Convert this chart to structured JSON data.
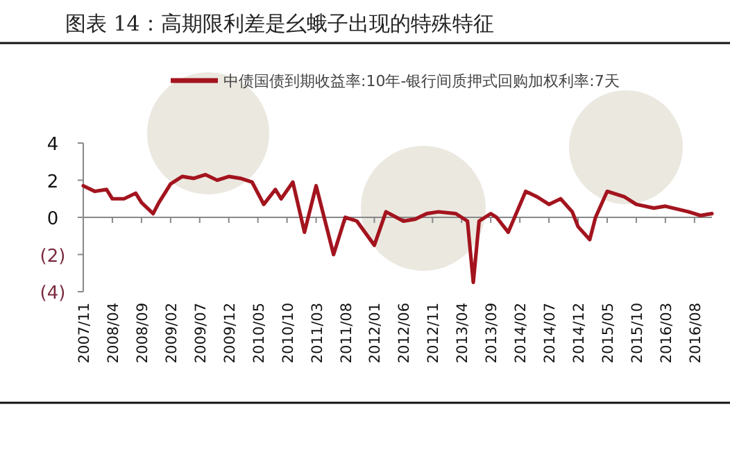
{
  "chart_data": {
    "type": "line",
    "title": "图表 14：高期限利差是幺蛾子出现的特殊特征",
    "x": [
      "2007-11",
      "2007-12",
      "2008-01",
      "2008-03",
      "2008-04",
      "2008-06",
      "2008-08",
      "2008-09",
      "2008-11",
      "2008-12",
      "2009-02",
      "2009-04",
      "2009-06",
      "2009-08",
      "2009-10",
      "2009-12",
      "2010-02",
      "2010-04",
      "2010-06",
      "2010-08",
      "2010-09",
      "2010-11",
      "2011-01",
      "2011-03",
      "2011-06",
      "2011-08",
      "2011-10",
      "2012-01",
      "2012-03",
      "2012-06",
      "2012-08",
      "2012-10",
      "2012-12",
      "2013-03",
      "2013-05",
      "2013-06",
      "2013-07",
      "2013-09",
      "2013-10",
      "2013-12",
      "2014-03",
      "2014-05",
      "2014-07",
      "2014-09",
      "2014-11",
      "2014-12",
      "2015-02",
      "2015-03",
      "2015-05",
      "2015-08",
      "2015-10",
      "2016-01",
      "2016-03",
      "2016-07",
      "2016-09",
      "2016-11"
    ],
    "series": [
      {
        "name": "中债国债到期收益率:10年-银行间质押式回购加权利率:7天",
        "color": "#a3141e",
        "values": [
          1.7,
          1.55,
          1.4,
          1.5,
          1.0,
          1.0,
          1.3,
          0.8,
          0.2,
          0.8,
          1.8,
          2.2,
          2.1,
          2.3,
          2.0,
          2.2,
          2.1,
          1.9,
          0.7,
          1.5,
          1.0,
          1.9,
          -0.8,
          1.7,
          -2.0,
          0.0,
          -0.2,
          -1.5,
          0.3,
          -0.2,
          -0.1,
          0.2,
          0.3,
          0.2,
          -0.2,
          -3.5,
          -0.2,
          0.2,
          0.0,
          -0.8,
          1.4,
          1.1,
          0.7,
          1.0,
          0.3,
          -0.5,
          -1.2,
          0.0,
          1.4,
          1.1,
          0.7,
          0.5,
          0.6,
          0.3,
          0.1,
          0.2
        ]
      }
    ],
    "xlim": [
      "2007-11",
      "2016-11"
    ],
    "xticks": [
      {
        "value": "2007-11",
        "label": "2007/11"
      },
      {
        "value": "2008-04",
        "label": "2008/04"
      },
      {
        "value": "2008-09",
        "label": "2008/09"
      },
      {
        "value": "2009-02",
        "label": "2009/02"
      },
      {
        "value": "2009-07",
        "label": "2009/07"
      },
      {
        "value": "2009-12",
        "label": "2009/12"
      },
      {
        "value": "2010-05",
        "label": "2010/05"
      },
      {
        "value": "2010-10",
        "label": "2010/10"
      },
      {
        "value": "2011-03",
        "label": "2011/03"
      },
      {
        "value": "2011-08",
        "label": "2011/08"
      },
      {
        "value": "2012-01",
        "label": "2012/01"
      },
      {
        "value": "2012-06",
        "label": "2012/06"
      },
      {
        "value": "2012-11",
        "label": "2012/11"
      },
      {
        "value": "2013-04",
        "label": "2013/04"
      },
      {
        "value": "2013-09",
        "label": "2013/09"
      },
      {
        "value": "2014-02",
        "label": "2014/02"
      },
      {
        "value": "2014-07",
        "label": "2014/07"
      },
      {
        "value": "2014-12",
        "label": "2014/12"
      },
      {
        "value": "2015-05",
        "label": "2015/05"
      },
      {
        "value": "2015-10",
        "label": "2015/10"
      },
      {
        "value": "2016-03",
        "label": "2016/03"
      },
      {
        "value": "2016-08",
        "label": "2016/08"
      }
    ],
    "ylim": [
      -4,
      4
    ],
    "yticks": [
      {
        "value": 4,
        "label": "4"
      },
      {
        "value": 2,
        "label": "2"
      },
      {
        "value": 0,
        "label": "0"
      },
      {
        "value": -2,
        "label": "(2)"
      },
      {
        "value": -4,
        "label": "(4)"
      }
    ],
    "legend": "top",
    "line_style": "solid",
    "marker": "none"
  }
}
